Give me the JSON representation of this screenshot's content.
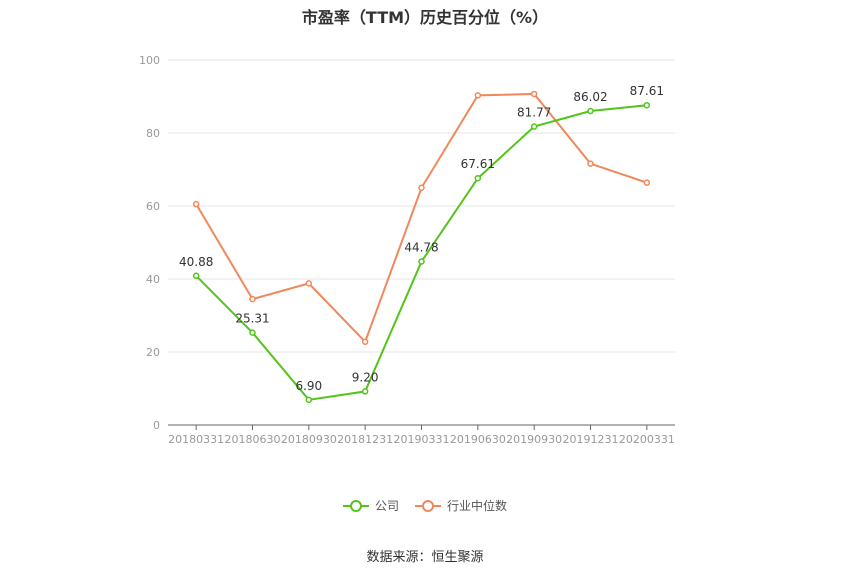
{
  "title": "市盈率（TTM）历史百分位（%）",
  "source": "数据来源：恒生聚源",
  "colors": {
    "company": "#52c41a",
    "industry": "#f0885a",
    "grid": "#e6e6e6",
    "axis": "#999999"
  },
  "chart_data": {
    "type": "line",
    "title": "市盈率（TTM）历史百分位（%）",
    "categories": [
      "20180331",
      "20180630",
      "20180930",
      "20181231",
      "20190331",
      "20190630",
      "20190930",
      "20191231",
      "20200331"
    ],
    "ylim": [
      0,
      100
    ],
    "yticks": [
      0,
      20,
      40,
      60,
      80,
      100
    ],
    "grid": true,
    "legend_position": "bottom-center",
    "series": [
      {
        "name": "公司",
        "values": [
          40.88,
          25.31,
          6.9,
          9.2,
          44.78,
          67.61,
          81.77,
          86.02,
          87.61
        ],
        "labels": [
          "40.88",
          "25.31",
          "6.90",
          "9.20",
          "44.78",
          "67.61",
          "81.77",
          "86.02",
          "87.61"
        ]
      },
      {
        "name": "行业中位数",
        "values": [
          60.5,
          34.5,
          38.8,
          22.8,
          65.0,
          90.3,
          90.7,
          71.6,
          66.4
        ]
      }
    ]
  }
}
